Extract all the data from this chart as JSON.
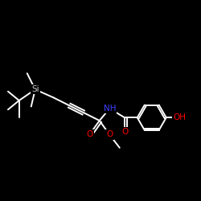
{
  "background_color": "#000000",
  "bond_color": "#ffffff",
  "atom_colors": {
    "O": "#ff0000",
    "N": "#4040ff",
    "Si": "#c8c8c8",
    "C": "#ffffff"
  },
  "figsize": [
    2.5,
    2.5
  ],
  "dpi": 100,
  "lw": 1.4
}
